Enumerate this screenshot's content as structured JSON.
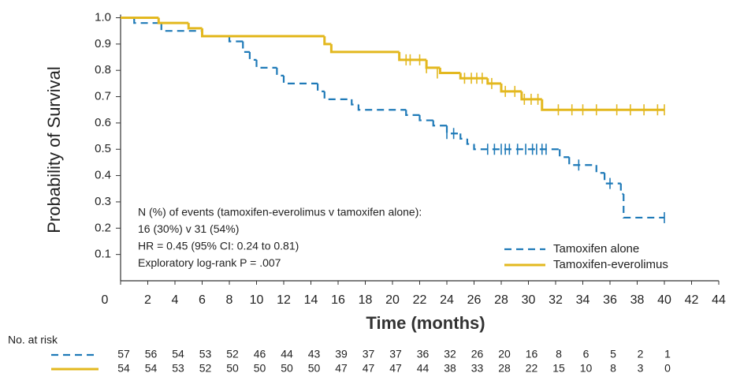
{
  "chart_data": {
    "type": "line",
    "step": true,
    "ylabel": "Probability of Survival",
    "xlabel": "Time (months)",
    "xlim": [
      0,
      44
    ],
    "xticks": [
      0,
      2,
      4,
      6,
      8,
      10,
      12,
      14,
      16,
      18,
      20,
      22,
      24,
      26,
      28,
      30,
      32,
      34,
      36,
      38,
      40,
      42,
      44
    ],
    "ylim": [
      0,
      1.0
    ],
    "yticks": [
      0.1,
      0.2,
      0.3,
      0.4,
      0.5,
      0.6,
      0.7,
      0.8,
      0.9,
      {
        "value": 1.0,
        "label": "1.0"
      }
    ],
    "legend": "lower right",
    "annotations": [
      "N (%) of events (tamoxifen-everolimus v tamoxifen alone):",
      "16 (30%) v 31 (54%)",
      "HR = 0.45 (95% CI: 0.24 to 0.81)",
      "Exploratory log-rank P = .007"
    ],
    "series": [
      {
        "name": "Tamoxifen alone",
        "color": "#1f7ab8",
        "dashed": true,
        "x": [
          0,
          1,
          3,
          6,
          8,
          9,
          9.5,
          10,
          11.5,
          12,
          14.5,
          15,
          17,
          17.5,
          21,
          22,
          23,
          24,
          25,
          25.5,
          26,
          32.3,
          33,
          35,
          35.6,
          36.8,
          37,
          40
        ],
        "values": [
          1.0,
          0.98,
          0.95,
          0.93,
          0.91,
          0.87,
          0.84,
          0.81,
          0.78,
          0.75,
          0.72,
          0.69,
          0.67,
          0.65,
          0.63,
          0.61,
          0.59,
          0.56,
          0.54,
          0.52,
          0.5,
          0.47,
          0.44,
          0.41,
          0.37,
          0.33,
          0.24,
          0.24
        ],
        "censor_x": [
          24,
          24.5,
          27,
          27.5,
          28,
          28.3,
          28.6,
          29.2,
          29.8,
          30.3,
          30.6,
          31,
          31.3,
          33.7,
          36,
          40
        ],
        "censor_values": [
          0.56,
          0.56,
          0.5,
          0.5,
          0.5,
          0.5,
          0.5,
          0.5,
          0.5,
          0.5,
          0.5,
          0.5,
          0.5,
          0.44,
          0.37,
          0.24
        ],
        "at_risk": [
          57,
          56,
          54,
          53,
          52,
          46,
          44,
          43,
          39,
          37,
          37,
          36,
          32,
          26,
          20,
          16,
          8,
          6,
          5,
          2,
          1
        ]
      },
      {
        "name": "Tamoxifen-everolimus",
        "color": "#e3b81f",
        "dashed": false,
        "x": [
          0,
          2.8,
          5,
          6,
          15,
          15.5,
          20.5,
          22.5,
          23.5,
          25,
          27,
          28,
          29.5,
          31,
          40
        ],
        "values": [
          1.0,
          0.98,
          0.96,
          0.93,
          0.9,
          0.87,
          0.84,
          0.81,
          0.79,
          0.77,
          0.75,
          0.72,
          0.69,
          0.65,
          0.65
        ],
        "censor_x": [
          21,
          21.3,
          22,
          22.5,
          23.3,
          25.3,
          25.8,
          26.2,
          26.6,
          27.3,
          28.3,
          29,
          29.7,
          30.2,
          30.7,
          32.2,
          33.2,
          34,
          35,
          36.5,
          37.5,
          38.5,
          39.5,
          40
        ],
        "censor_values": [
          0.84,
          0.84,
          0.84,
          0.81,
          0.79,
          0.77,
          0.77,
          0.77,
          0.77,
          0.75,
          0.72,
          0.72,
          0.69,
          0.69,
          0.69,
          0.65,
          0.65,
          0.65,
          0.65,
          0.65,
          0.65,
          0.65,
          0.65,
          0.65
        ],
        "at_risk": [
          54,
          54,
          53,
          52,
          50,
          50,
          50,
          50,
          47,
          47,
          47,
          44,
          38,
          33,
          28,
          22,
          15,
          10,
          8,
          3,
          0
        ]
      }
    ],
    "risk_table_title": "No. at risk"
  }
}
